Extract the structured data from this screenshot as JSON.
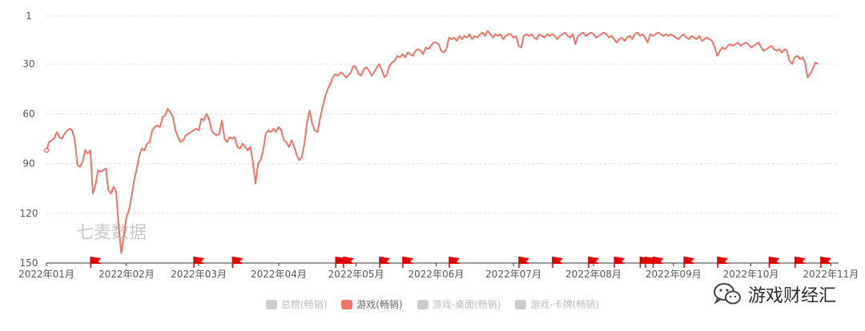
{
  "chart_data": {
    "type": "line",
    "y_axis": {
      "inverted": true,
      "min": 1,
      "max": 150,
      "ticks": [
        1,
        30,
        60,
        90,
        120,
        150
      ]
    },
    "x_axis": {
      "tick_labels": [
        "2022年01月",
        "2022年02月",
        "2022年03月",
        "2022年04月",
        "2022年05月",
        "2022年06月",
        "2022年07月",
        "2022年08月",
        "2022年09月",
        "2022年10月",
        "2022年11月"
      ],
      "range_days": [
        0,
        307
      ],
      "tick_positions_days": [
        0,
        31,
        59,
        90,
        120,
        151,
        181,
        212,
        243,
        273,
        304
      ]
    },
    "grid": true,
    "series": [
      {
        "name": "游戏(畅销)",
        "color": "#f07368",
        "points": [
          [
            0,
            82
          ],
          [
            1,
            77
          ],
          [
            2,
            76
          ],
          [
            3,
            75
          ],
          [
            4,
            71
          ],
          [
            5,
            74
          ],
          [
            6,
            75
          ],
          [
            7,
            72
          ],
          [
            8,
            70
          ],
          [
            9,
            69
          ],
          [
            10,
            70
          ],
          [
            11,
            76
          ],
          [
            12,
            91
          ],
          [
            13,
            92
          ],
          [
            14,
            89
          ],
          [
            15,
            82
          ],
          [
            16,
            84
          ],
          [
            17,
            82
          ],
          [
            18,
            108
          ],
          [
            19,
            103
          ],
          [
            20,
            94
          ],
          [
            21,
            95
          ],
          [
            22,
            94
          ],
          [
            23,
            93
          ],
          [
            24,
            106
          ],
          [
            25,
            108
          ],
          [
            26,
            104
          ],
          [
            27,
            107
          ],
          [
            28,
            128
          ],
          [
            29,
            144
          ],
          [
            30,
            134
          ],
          [
            31,
            122
          ],
          [
            32,
            118
          ],
          [
            33,
            110
          ],
          [
            34,
            100
          ],
          [
            35,
            93
          ],
          [
            36,
            85
          ],
          [
            37,
            81
          ],
          [
            38,
            82
          ],
          [
            39,
            78
          ],
          [
            40,
            77
          ],
          [
            41,
            70
          ],
          [
            42,
            68
          ],
          [
            43,
            67
          ],
          [
            44,
            68
          ],
          [
            45,
            62
          ],
          [
            46,
            61
          ],
          [
            47,
            57
          ],
          [
            48,
            59
          ],
          [
            49,
            62
          ],
          [
            50,
            70
          ],
          [
            51,
            74
          ],
          [
            52,
            77
          ],
          [
            53,
            76
          ],
          [
            54,
            73
          ],
          [
            55,
            72
          ],
          [
            56,
            71
          ],
          [
            57,
            70
          ],
          [
            58,
            69
          ],
          [
            59,
            70
          ],
          [
            60,
            63
          ],
          [
            61,
            64
          ],
          [
            62,
            60
          ],
          [
            63,
            63
          ],
          [
            64,
            70
          ],
          [
            65,
            72
          ],
          [
            66,
            73
          ],
          [
            67,
            72
          ],
          [
            68,
            64
          ],
          [
            69,
            75
          ],
          [
            70,
            77
          ],
          [
            71,
            74
          ],
          [
            72,
            75
          ],
          [
            73,
            74
          ],
          [
            74,
            80
          ],
          [
            75,
            81
          ],
          [
            76,
            78
          ],
          [
            77,
            80
          ],
          [
            78,
            82
          ],
          [
            79,
            80
          ],
          [
            80,
            89
          ],
          [
            81,
            102
          ],
          [
            82,
            90
          ],
          [
            83,
            88
          ],
          [
            84,
            82
          ],
          [
            85,
            72
          ],
          [
            86,
            70
          ],
          [
            87,
            71
          ],
          [
            88,
            69
          ],
          [
            89,
            71
          ],
          [
            90,
            68
          ],
          [
            91,
            70
          ],
          [
            92,
            76
          ],
          [
            93,
            77
          ],
          [
            94,
            80
          ],
          [
            95,
            76
          ],
          [
            96,
            80
          ],
          [
            97,
            85
          ],
          [
            98,
            88
          ],
          [
            99,
            86
          ],
          [
            100,
            78
          ],
          [
            101,
            65
          ],
          [
            102,
            58
          ],
          [
            103,
            66
          ],
          [
            104,
            70
          ],
          [
            105,
            71
          ],
          [
            106,
            63
          ],
          [
            107,
            56
          ],
          [
            108,
            50
          ],
          [
            109,
            45
          ],
          [
            110,
            42
          ],
          [
            111,
            38
          ],
          [
            112,
            36
          ],
          [
            113,
            37
          ],
          [
            114,
            35
          ],
          [
            115,
            36
          ],
          [
            116,
            38
          ],
          [
            117,
            37
          ],
          [
            118,
            35
          ],
          [
            119,
            31
          ],
          [
            120,
            32
          ],
          [
            121,
            36
          ],
          [
            122,
            37
          ],
          [
            123,
            33
          ],
          [
            124,
            32
          ],
          [
            125,
            34
          ],
          [
            126,
            37
          ],
          [
            127,
            35
          ],
          [
            128,
            32
          ],
          [
            129,
            30
          ],
          [
            130,
            34
          ],
          [
            131,
            38
          ],
          [
            132,
            36
          ],
          [
            133,
            31
          ],
          [
            134,
            29
          ],
          [
            135,
            28
          ],
          [
            136,
            25
          ],
          [
            137,
            26
          ],
          [
            138,
            24
          ],
          [
            139,
            26
          ],
          [
            140,
            23
          ],
          [
            141,
            24
          ],
          [
            142,
            25
          ],
          [
            143,
            22
          ],
          [
            144,
            21
          ],
          [
            145,
            22
          ],
          [
            146,
            24
          ],
          [
            147,
            20
          ],
          [
            148,
            21
          ],
          [
            149,
            19
          ],
          [
            150,
            17
          ],
          [
            151,
            17
          ],
          [
            152,
            18
          ],
          [
            153,
            22
          ],
          [
            154,
            23
          ],
          [
            155,
            21
          ],
          [
            156,
            14
          ],
          [
            157,
            15
          ],
          [
            158,
            14
          ],
          [
            159,
            16
          ],
          [
            160,
            13
          ],
          [
            161,
            15
          ],
          [
            162,
            13
          ],
          [
            163,
            14
          ],
          [
            164,
            12
          ],
          [
            165,
            15
          ],
          [
            166,
            13
          ],
          [
            167,
            14
          ],
          [
            168,
            12
          ],
          [
            169,
            11
          ],
          [
            170,
            13
          ],
          [
            171,
            10
          ],
          [
            172,
            12
          ],
          [
            173,
            14
          ],
          [
            174,
            12
          ],
          [
            175,
            13
          ],
          [
            176,
            12
          ],
          [
            177,
            15
          ],
          [
            178,
            13
          ],
          [
            179,
            12
          ],
          [
            180,
            12
          ],
          [
            181,
            14
          ],
          [
            182,
            13
          ],
          [
            183,
            19
          ],
          [
            184,
            20
          ],
          [
            185,
            13
          ],
          [
            186,
            12
          ],
          [
            187,
            13
          ],
          [
            188,
            12
          ],
          [
            189,
            14
          ],
          [
            190,
            15
          ],
          [
            191,
            12
          ],
          [
            192,
            13
          ],
          [
            193,
            14
          ],
          [
            194,
            12
          ],
          [
            195,
            13
          ],
          [
            196,
            12
          ],
          [
            197,
            13
          ],
          [
            198,
            15
          ],
          [
            199,
            13
          ],
          [
            200,
            12
          ],
          [
            201,
            11
          ],
          [
            202,
            13
          ],
          [
            203,
            14
          ],
          [
            204,
            12
          ],
          [
            205,
            18
          ],
          [
            206,
            13
          ],
          [
            207,
            12
          ],
          [
            208,
            11
          ],
          [
            209,
            13
          ],
          [
            210,
            12
          ],
          [
            211,
            11
          ],
          [
            212,
            12
          ],
          [
            213,
            14
          ],
          [
            214,
            13
          ],
          [
            215,
            12
          ],
          [
            216,
            11
          ],
          [
            217,
            12
          ],
          [
            218,
            14
          ],
          [
            219,
            13
          ],
          [
            220,
            15
          ],
          [
            221,
            17
          ],
          [
            222,
            15
          ],
          [
            223,
            14
          ],
          [
            224,
            16
          ],
          [
            225,
            14
          ],
          [
            226,
            13
          ],
          [
            227,
            15
          ],
          [
            228,
            12
          ],
          [
            229,
            11
          ],
          [
            230,
            13
          ],
          [
            231,
            12
          ],
          [
            232,
            14
          ],
          [
            233,
            17
          ],
          [
            234,
            12
          ],
          [
            235,
            13
          ],
          [
            236,
            12
          ],
          [
            237,
            11
          ],
          [
            238,
            12
          ],
          [
            239,
            13
          ],
          [
            240,
            12
          ],
          [
            241,
            13
          ],
          [
            242,
            12
          ],
          [
            243,
            13
          ],
          [
            244,
            14
          ],
          [
            245,
            15
          ],
          [
            246,
            13
          ],
          [
            247,
            12
          ],
          [
            248,
            14
          ],
          [
            249,
            15
          ],
          [
            250,
            13
          ],
          [
            251,
            14
          ],
          [
            252,
            15
          ],
          [
            253,
            13
          ],
          [
            254,
            16
          ],
          [
            255,
            15
          ],
          [
            256,
            14
          ],
          [
            257,
            15
          ],
          [
            258,
            16
          ],
          [
            259,
            20
          ],
          [
            260,
            25
          ],
          [
            261,
            22
          ],
          [
            262,
            20
          ],
          [
            263,
            21
          ],
          [
            264,
            19
          ],
          [
            265,
            18
          ],
          [
            266,
            19
          ],
          [
            267,
            18
          ],
          [
            268,
            17
          ],
          [
            269,
            19
          ],
          [
            270,
            18
          ],
          [
            271,
            17
          ],
          [
            272,
            18
          ],
          [
            273,
            20
          ],
          [
            274,
            19
          ],
          [
            275,
            18
          ],
          [
            276,
            17
          ],
          [
            277,
            20
          ],
          [
            278,
            22
          ],
          [
            279,
            21
          ],
          [
            280,
            20
          ],
          [
            281,
            19
          ],
          [
            282,
            21
          ],
          [
            283,
            22
          ],
          [
            284,
            21
          ],
          [
            285,
            23
          ],
          [
            286,
            21
          ],
          [
            287,
            22
          ],
          [
            288,
            28
          ],
          [
            289,
            30
          ],
          [
            290,
            26
          ],
          [
            291,
            25
          ],
          [
            292,
            27
          ],
          [
            293,
            26
          ],
          [
            294,
            29
          ],
          [
            295,
            38
          ],
          [
            296,
            36
          ],
          [
            297,
            33
          ],
          [
            298,
            29
          ],
          [
            299,
            30
          ]
        ]
      }
    ],
    "event_markers_days": [
      19,
      59,
      74,
      114,
      117,
      131,
      140,
      158,
      185,
      198,
      212,
      222,
      232,
      234,
      237,
      249,
      262,
      282,
      292,
      302
    ]
  },
  "watermark_text": "七麦数据",
  "legend": [
    {
      "label": "总榜(畅销)",
      "color": "#cccccc",
      "active": false
    },
    {
      "label": "游戏(畅销)",
      "color": "#f07368",
      "active": true
    },
    {
      "label": "游戏-桌面(畅销)",
      "color": "#cccccc",
      "active": false
    },
    {
      "label": "游戏-卡牌(畅销)",
      "color": "#cccccc",
      "active": false
    }
  ],
  "brand": {
    "name": "游戏财经汇",
    "icon": "wechat-icon"
  },
  "colors": {
    "grid": "#dddddd",
    "flag": "#e50000",
    "axis": "#333333"
  }
}
